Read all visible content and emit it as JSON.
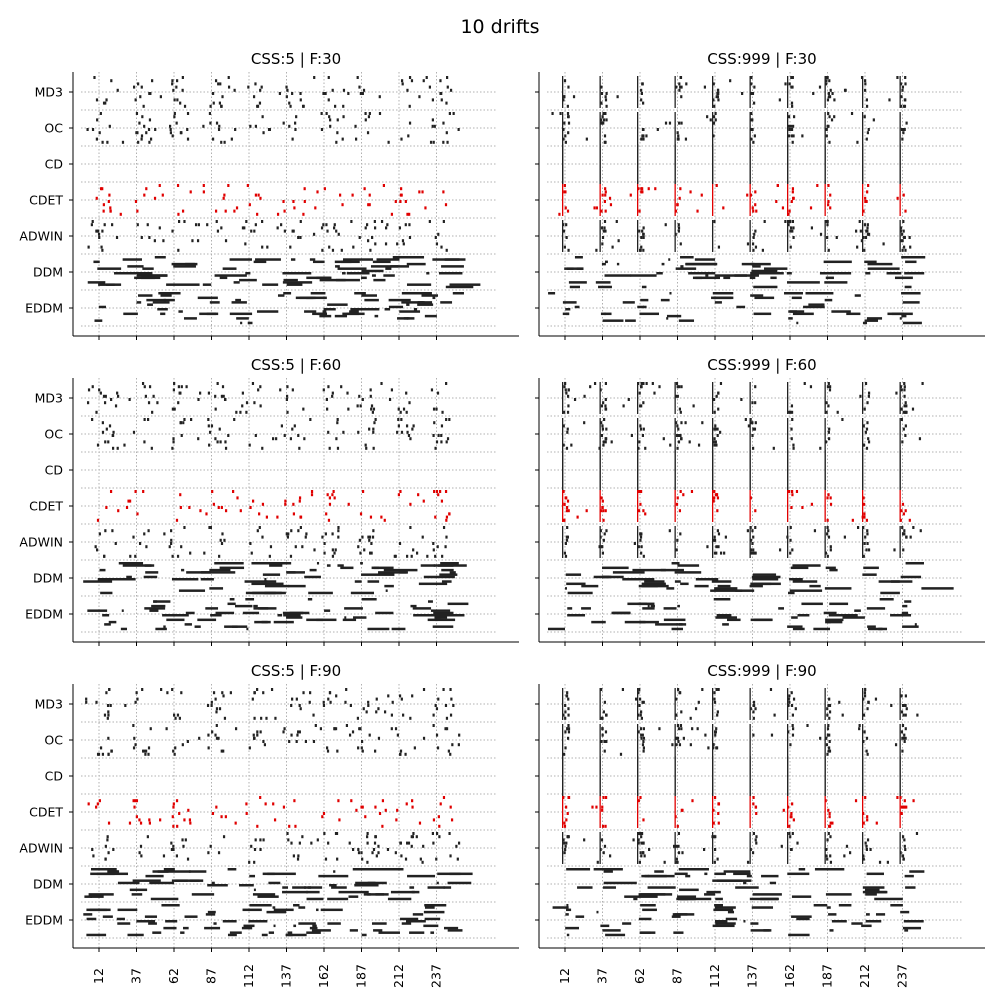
{
  "figure": {
    "title": "10 drifts"
  },
  "chart_data": {
    "type": "scatter",
    "description_of_marks": "event raster per detector; dots mark detected drift points",
    "detectors": [
      "MD3",
      "OC",
      "CD",
      "CDET",
      "ADWIN",
      "DDM",
      "EDDM"
    ],
    "highlight_detector": "CDET",
    "xticks": [
      12,
      37,
      62,
      87,
      112,
      137,
      162,
      187,
      212,
      237
    ],
    "xlim": [
      0,
      260
    ],
    "grid": true,
    "colors": {
      "default": "#222222",
      "highlight": "#e00000",
      "grid": "#b0b0b0"
    },
    "panels": [
      {
        "title": "CSS:5 | F:30",
        "css": 5,
        "f": 30,
        "drift_aligned": false
      },
      {
        "title": "CSS:999 | F:30",
        "css": 999,
        "f": 30,
        "drift_aligned": true
      },
      {
        "title": "CSS:5 | F:60",
        "css": 5,
        "f": 60,
        "drift_aligned": false
      },
      {
        "title": "CSS:999 | F:60",
        "css": 999,
        "f": 60,
        "drift_aligned": true
      },
      {
        "title": "CSS:5 | F:90",
        "css": 5,
        "f": 90,
        "drift_aligned": false
      },
      {
        "title": "CSS:999 | F:90",
        "css": 999,
        "f": 90,
        "drift_aligned": true
      }
    ]
  }
}
